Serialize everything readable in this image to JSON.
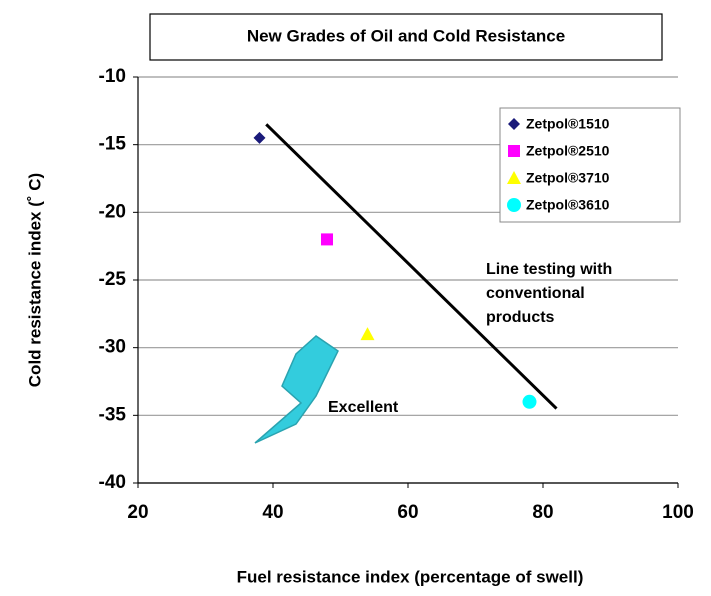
{
  "chart_data": {
    "type": "scatter",
    "title": "New Grades of Oil and Cold Resistance",
    "x_label": "Fuel resistance index (percentage of swell)",
    "y_label": "Cold resistance index (˚ C)",
    "xlim": [
      20,
      100
    ],
    "xticks": [
      20,
      40,
      60,
      80,
      100
    ],
    "ylim": [
      -40,
      -10
    ],
    "yticks": [
      -10,
      -15,
      -20,
      -25,
      -30,
      -35,
      -40
    ],
    "grid": true,
    "legend": "upper right",
    "series": [
      {
        "name": "Zetpol®1510",
        "color": "#1a1a7a",
        "marker": "diamond",
        "x": [
          38
        ],
        "values": [
          -14.5
        ]
      },
      {
        "name": "Zetpol®2510",
        "color": "#ff00ff",
        "marker": "square",
        "x": [
          48
        ],
        "values": [
          -22
        ]
      },
      {
        "name": "Zetpol®3710",
        "color": "#ffff00",
        "marker": "triangle",
        "x": [
          54
        ],
        "values": [
          -29
        ]
      },
      {
        "name": "Zetpol®3610",
        "color": "#00ffff",
        "marker": "circle",
        "x": [
          78
        ],
        "values": [
          -34
        ]
      }
    ],
    "trend_line": {
      "x": [
        39,
        82
      ],
      "values": [
        -13.5,
        -34.5
      ],
      "color": "#000000"
    },
    "annotations": {
      "trend": [
        "Line testing with",
        "conventional",
        "products"
      ],
      "arrow": "Excellent"
    }
  }
}
